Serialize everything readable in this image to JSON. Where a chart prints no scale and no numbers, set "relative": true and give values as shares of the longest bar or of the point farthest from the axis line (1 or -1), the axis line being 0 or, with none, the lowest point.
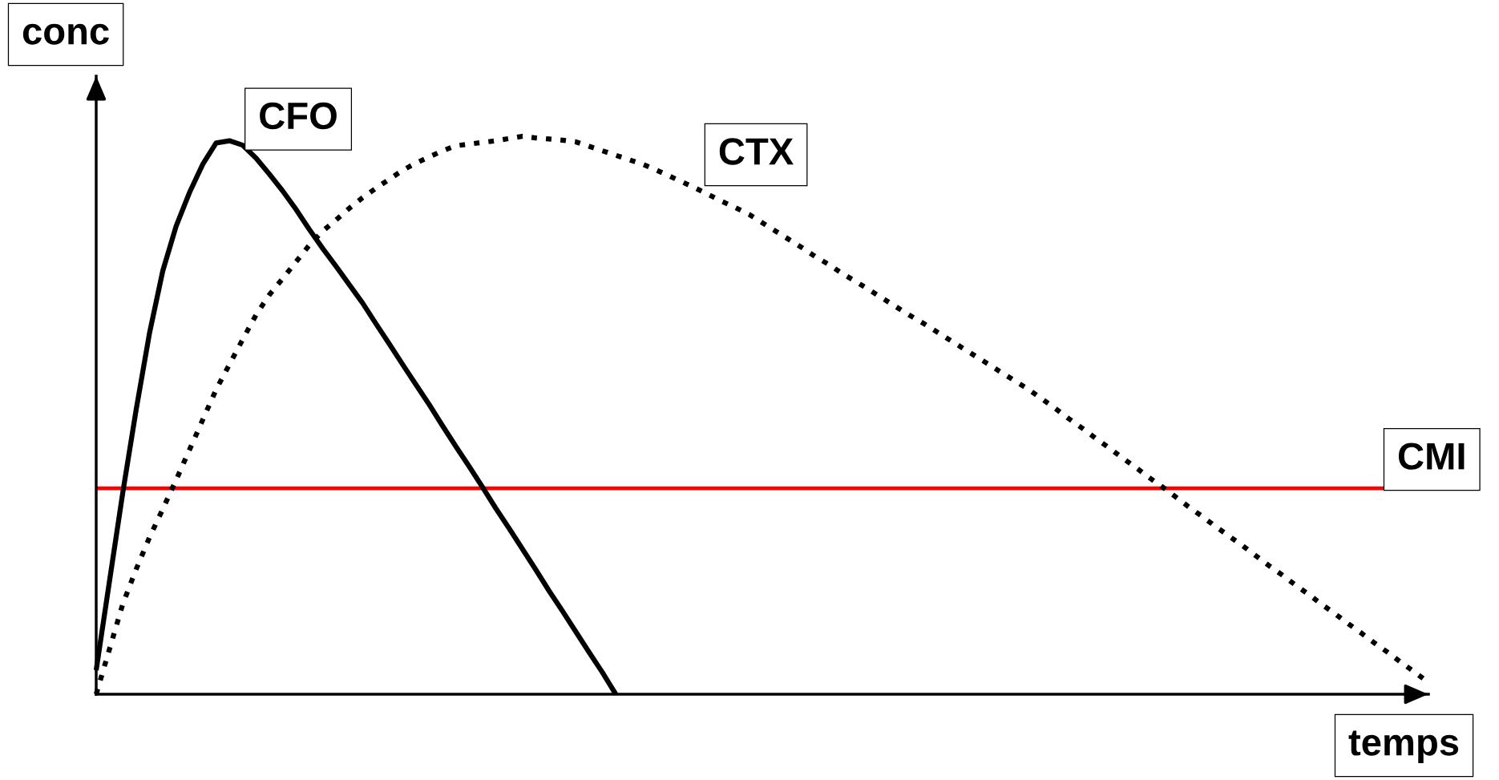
{
  "chart_data": {
    "type": "line",
    "relative": true,
    "xlabel": "temps",
    "ylabel": "conc",
    "categories": [
      null,
      null,
      null,
      null,
      null,
      null,
      null,
      null,
      null,
      null,
      null,
      null,
      null,
      null,
      null,
      null,
      null,
      null,
      null,
      null,
      null,
      null,
      null,
      null,
      null,
      null,
      null,
      null,
      null,
      null,
      null,
      null,
      null,
      null,
      null,
      null,
      null,
      null,
      null,
      null,
      null,
      null,
      null,
      null,
      null,
      null,
      null,
      null,
      null,
      null,
      null,
      null,
      null,
      null,
      null,
      null,
      null,
      null,
      null,
      null,
      null,
      null,
      null,
      null,
      null,
      null,
      null,
      null,
      null,
      null,
      null,
      null,
      null,
      null,
      null,
      null,
      null,
      null,
      null,
      null,
      null,
      null,
      null,
      null,
      null,
      null,
      null,
      null,
      null,
      null,
      null,
      null,
      null,
      null,
      null,
      null,
      null,
      null,
      null,
      null,
      null
    ],
    "series": [
      {
        "name": "CFO",
        "color": "#000000",
        "line_style": "solid",
        "values": [
          0.043,
          0.203,
          0.362,
          0.51,
          0.647,
          0.759,
          0.839,
          0.899,
          0.95,
          0.988,
          0.992,
          0.984,
          0.961,
          0.932,
          0.902,
          0.869,
          0.833,
          0.799,
          0.767,
          0.734,
          0.701,
          0.664,
          0.628,
          0.591,
          0.555,
          0.519,
          0.481,
          0.444,
          0.408,
          0.371,
          0.333,
          0.297,
          0.26,
          0.223,
          0.185,
          0.149,
          0.112,
          0.075,
          0.039,
          0,
          null,
          null,
          null,
          null,
          null,
          null,
          null,
          null,
          null,
          null,
          null,
          null,
          null,
          null,
          null,
          null,
          null,
          null,
          null,
          null,
          null,
          null,
          null,
          null,
          null,
          null,
          null,
          null,
          null,
          null,
          null,
          null,
          null,
          null,
          null,
          null,
          null,
          null,
          null,
          null,
          null,
          null,
          null,
          null,
          null,
          null,
          null,
          null,
          null,
          null,
          null,
          null,
          null,
          null,
          null,
          null,
          null,
          null,
          null,
          null,
          null
        ]
      },
      {
        "name": "CTX",
        "color": "#000000",
        "line_style": "dotted",
        "values": [
          0,
          0.081,
          0.162,
          0.224,
          0.281,
          0.332,
          0.384,
          0.438,
          0.492,
          0.546,
          0.591,
          0.636,
          0.68,
          0.716,
          0.745,
          0.775,
          0.805,
          0.83,
          0.85,
          0.871,
          0.89,
          0.907,
          0.923,
          0.939,
          0.952,
          0.963,
          0.974,
          0.983,
          0.986,
          0.989,
          0.992,
          0.996,
          1,
          0.997,
          0.995,
          0.993,
          0.99,
          0.982,
          0.974,
          0.966,
          0.958,
          0.95,
          0.94,
          0.929,
          0.918,
          0.907,
          0.895,
          0.883,
          0.872,
          0.86,
          0.845,
          0.83,
          0.815,
          0.8,
          0.784,
          0.77,
          0.754,
          0.74,
          0.725,
          0.71,
          0.695,
          0.68,
          0.666,
          0.651,
          0.636,
          0.621,
          0.606,
          0.591,
          0.576,
          0.561,
          0.546,
          0.529,
          0.512,
          0.494,
          0.477,
          0.459,
          0.442,
          0.424,
          0.407,
          0.389,
          0.372,
          0.354,
          0.336,
          0.319,
          0.301,
          0.284,
          0.267,
          0.249,
          0.231,
          0.214,
          0.196,
          0.179,
          0.161,
          0.144,
          0.126,
          0.109,
          0.091,
          0.074,
          0.056,
          0.039,
          0.021
        ]
      }
    ],
    "ref_lines": [
      {
        "axis": "y",
        "value": 0.369,
        "label": "CMI",
        "color": "#ff0000"
      }
    ]
  }
}
